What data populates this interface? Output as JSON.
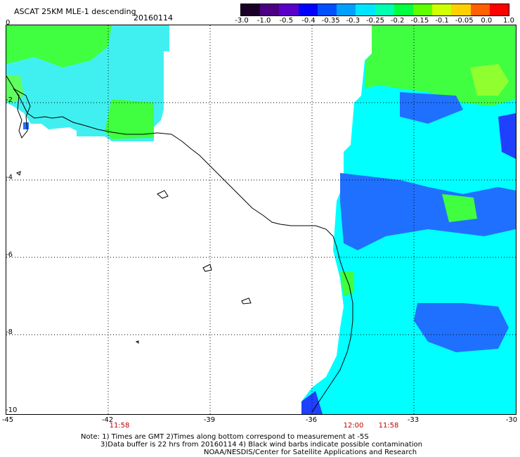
{
  "header": {
    "title": "ASCAT 25KM MLE-1 descending",
    "date": "20160114"
  },
  "colorbar": {
    "ticks": [
      "-3.0",
      "-1.0",
      "-0.5",
      "-0.4",
      "-0.35",
      "-0.3",
      "-0.25",
      "-0.2",
      "-0.15",
      "-0.1",
      "-0.05",
      "0.0",
      "1.0"
    ],
    "colors": [
      "#1a0026",
      "#4b0082",
      "#5a00c8",
      "#0000ff",
      "#0050ff",
      "#00a0ff",
      "#00e5ff",
      "#00ffb0",
      "#00ff40",
      "#60ff00",
      "#d0ff00",
      "#ffd000",
      "#ff6000",
      "#ff0000"
    ]
  },
  "map": {
    "y_axis_labels": [
      "0",
      "-2",
      "-4",
      "-6",
      "-8",
      "-10"
    ],
    "x_axis_labels": [
      "-45",
      "-42",
      "-39",
      "-36",
      "-33",
      "-30"
    ],
    "lon_range": [
      -45,
      -30
    ],
    "lat_range": [
      -10,
      0
    ],
    "pass_times": [
      "11:58",
      "12:00",
      "11:58"
    ],
    "colors": {
      "cyan": "#00ffff",
      "light_cyan": "#40f0f0",
      "green": "#40ff40",
      "yellow_green": "#90ff30",
      "blue": "#2070ff",
      "deep_blue": "#2040ff",
      "sky": "#00c8ff"
    }
  },
  "notes": {
    "line1": "Note: 1) Times are GMT 2)Times along bottom correspond to measurement at -5S",
    "line2": "3)Data buffer is 22 hrs from 20160114 4) Black wind barbs indicate possible contamination",
    "line3": "NOAA/NESDIS/Center for Satellite Applications and Research"
  }
}
